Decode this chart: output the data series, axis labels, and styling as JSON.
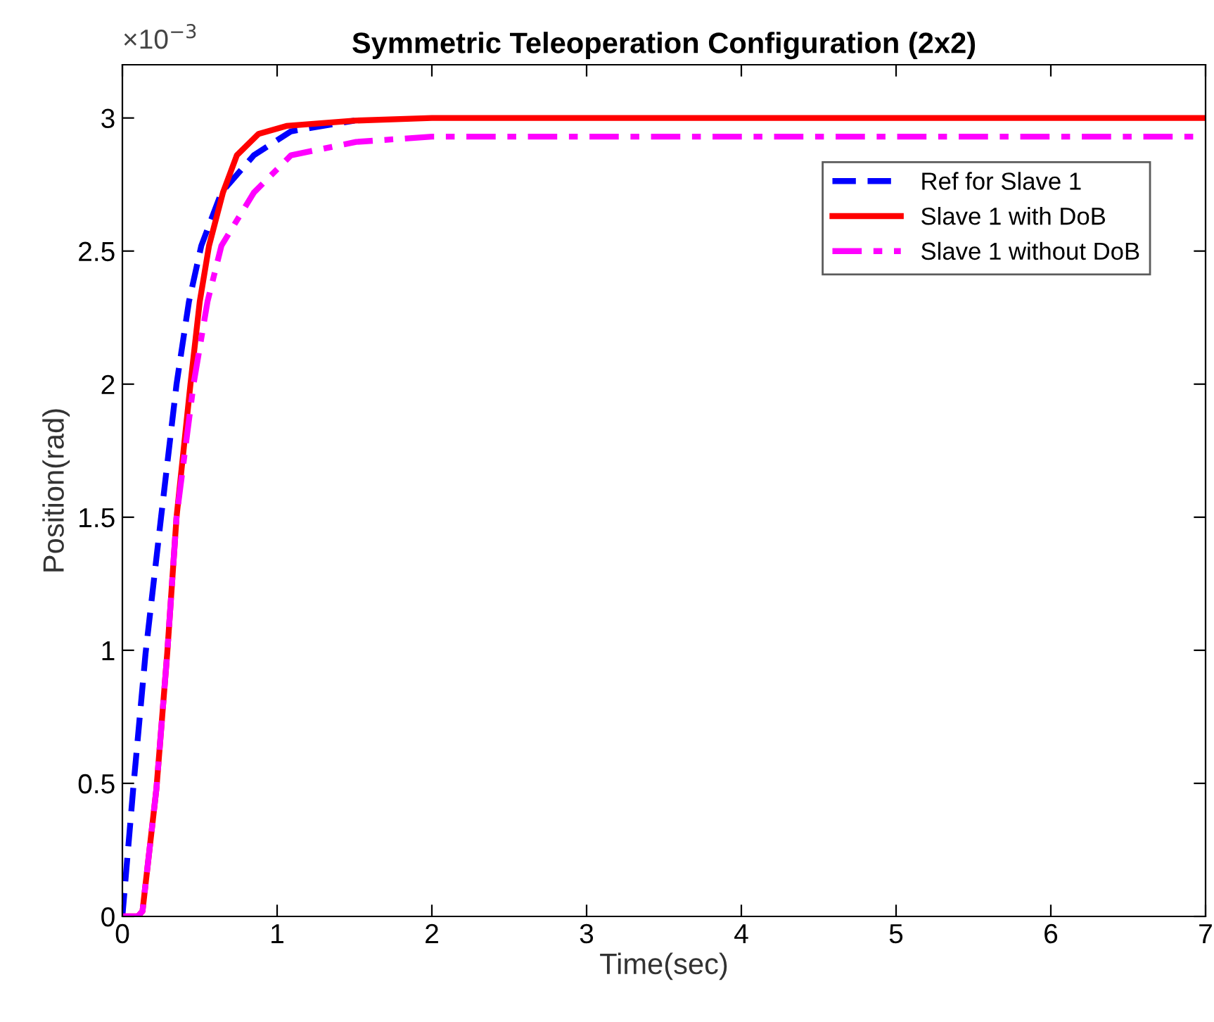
{
  "chart_data": {
    "type": "line",
    "title": "Symmetric Teleoperation Configuration (2x2)",
    "xlabel": "Time(sec)",
    "ylabel": "Position(rad)",
    "annotations": [
      "×10$^{−3}$"
    ],
    "xlim": [
      0,
      7
    ],
    "xticks": [
      0,
      1,
      2,
      3,
      4,
      5,
      6,
      7
    ],
    "ylim": [
      0,
      3.2
    ],
    "yticks": [
      0,
      0.5,
      1,
      1.5,
      2,
      2.5,
      3
    ],
    "grid": false,
    "legend": "top right",
    "series": [
      {
        "name": "Ref for Slave 1",
        "color": "#0000ff",
        "line_style": "dashed",
        "x": [
          0,
          0.07,
          0.15,
          0.25,
          0.35,
          0.43,
          0.51,
          0.64,
          0.85,
          1.09,
          1.5
        ],
        "values": [
          0,
          0.48,
          0.99,
          1.5,
          2.0,
          2.31,
          2.52,
          2.72,
          2.86,
          2.95,
          2.99
        ]
      },
      {
        "name": "Slave 1 with DoB",
        "color": "#ff0000",
        "line_style": "solid",
        "x": [
          0,
          0.1,
          0.13,
          0.22,
          0.29,
          0.35,
          0.44,
          0.5,
          0.56,
          0.65,
          0.74,
          0.88,
          1.06,
          1.5,
          2,
          3,
          4,
          5,
          6,
          7
        ],
        "values": [
          0,
          0,
          0.02,
          0.48,
          0.99,
          1.5,
          2.0,
          2.31,
          2.52,
          2.72,
          2.86,
          2.94,
          2.97,
          2.99,
          3.0,
          3.0,
          3.0,
          3.0,
          3.0,
          3.0
        ]
      },
      {
        "name": "Slave 1 without DoB",
        "color": "#ff00ff",
        "line_style": "dashdot",
        "x": [
          0,
          0.1,
          0.13,
          0.22,
          0.29,
          0.35,
          0.46,
          0.55,
          0.64,
          0.85,
          1.09,
          1.51,
          2,
          3,
          4,
          5,
          6,
          7
        ],
        "values": [
          0,
          0,
          0.02,
          0.48,
          0.99,
          1.5,
          2.0,
          2.31,
          2.52,
          2.72,
          2.86,
          2.91,
          2.93,
          2.93,
          2.93,
          2.93,
          2.93,
          2.93
        ]
      }
    ]
  }
}
